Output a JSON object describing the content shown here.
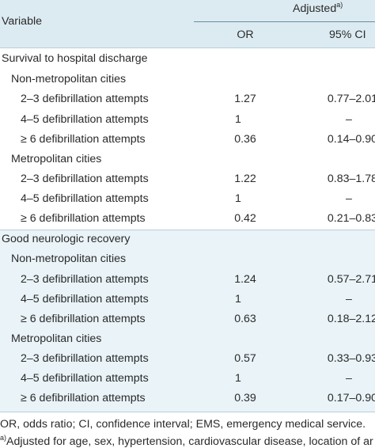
{
  "header": {
    "variable": "Variable",
    "adjusted": "Adjusted",
    "adjusted_note": "a)",
    "or": "OR",
    "ci": "95% CI"
  },
  "sections": [
    {
      "title": "Survival to hospital discharge",
      "groups": [
        {
          "title": "Non-metropolitan cities",
          "rows": [
            {
              "label": "2–3 defibrillation attempts",
              "or": "1.27",
              "ci": "0.77–2.01"
            },
            {
              "label": "4–5 defibrillation attempts",
              "or": "1",
              "ci": "–"
            },
            {
              "label": "≥ 6 defibrillation attempts",
              "or": "0.36",
              "ci": "0.14–0.90"
            }
          ]
        },
        {
          "title": "Metropolitan cities",
          "rows": [
            {
              "label": "2–3 defibrillation attempts",
              "or": "1.22",
              "ci": "0.83–1.78"
            },
            {
              "label": "4–5 defibrillation attempts",
              "or": "1",
              "ci": "–"
            },
            {
              "label": "≥ 6 defibrillation attempts",
              "or": "0.42",
              "ci": "0.21–0.83"
            }
          ]
        }
      ]
    },
    {
      "title": "Good neurologic recovery",
      "groups": [
        {
          "title": "Non-metropolitan cities",
          "rows": [
            {
              "label": "2–3 defibrillation attempts",
              "or": "1.24",
              "ci": "0.57–2.71"
            },
            {
              "label": "4–5 defibrillation attempts",
              "or": "1",
              "ci": "–"
            },
            {
              "label": "≥ 6 defibrillation attempts",
              "or": "0.63",
              "ci": "0.18–2.12"
            }
          ]
        },
        {
          "title": "Metropolitan cities",
          "rows": [
            {
              "label": "2–3 defibrillation attempts",
              "or": "0.57",
              "ci": "0.33–0.93"
            },
            {
              "label": "4–5 defibrillation attempts",
              "or": "1",
              "ci": "–"
            },
            {
              "label": "≥ 6 defibrillation attempts",
              "or": "0.39",
              "ci": "0.17–0.90"
            }
          ]
        }
      ]
    }
  ],
  "footnotes": {
    "abbrev": "OR, odds ratio; CI, confidence interval; EMS, emergency medical service.",
    "adjusted_mark": "a)",
    "adjusted_text": "Adjusted for age, sex, hypertension, cardiovascular disease, location of ar"
  }
}
